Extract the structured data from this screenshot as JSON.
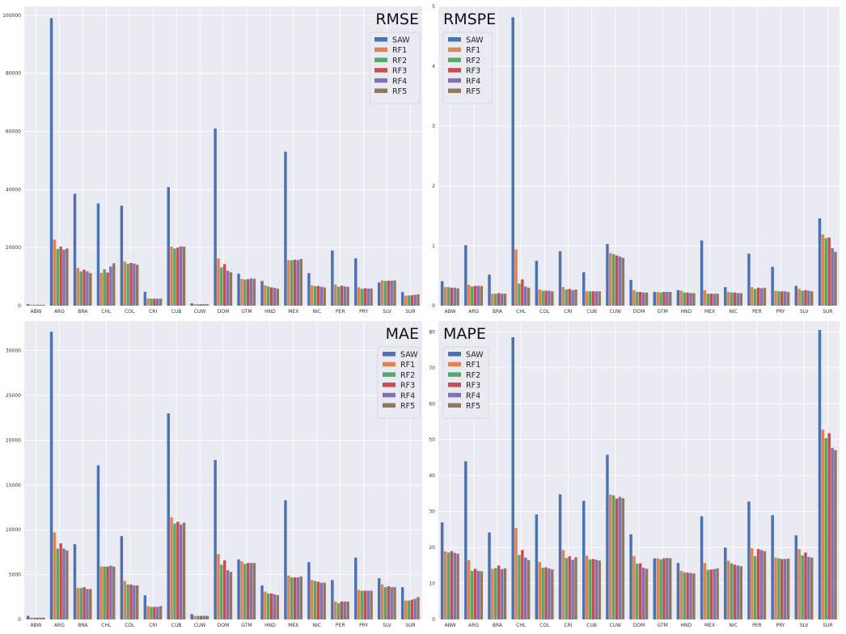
{
  "colors": {
    "SAW": "#4c72b0",
    "RF1": "#dd8452",
    "RF2": "#55a868",
    "RF3": "#c44e52",
    "RF4": "#8172b3",
    "RF5": "#937860",
    "panel_bg": "#eaeaf2",
    "grid": "#ffffff"
  },
  "chart_data": [
    {
      "type": "bar",
      "title": "RMSE",
      "legend": "top-right",
      "grid": true,
      "categories": [
        "ABW",
        "ARG",
        "BRA",
        "CHL",
        "COL",
        "CRI",
        "CUB",
        "CUW",
        "DOM",
        "GTM",
        "HND",
        "MEX",
        "NIC",
        "PER",
        "PRY",
        "SLV",
        "SUR"
      ],
      "ylim": [
        0,
        103000
      ],
      "yticks": [
        0,
        20000,
        40000,
        60000,
        80000,
        100000
      ],
      "series": [
        {
          "name": "SAW",
          "values": [
            500,
            99000,
            38500,
            35200,
            34400,
            4800,
            40800,
            800,
            61000,
            11000,
            8500,
            53000,
            11200,
            19000,
            16300,
            8000,
            4700
          ]
        },
        {
          "name": "RF1",
          "values": [
            300,
            22700,
            13000,
            11300,
            15200,
            2500,
            20300,
            500,
            16300,
            9200,
            7000,
            15700,
            7000,
            7300,
            6300,
            8700,
            3400
          ]
        },
        {
          "name": "RF2",
          "values": [
            300,
            19500,
            11800,
            12500,
            14400,
            2400,
            19700,
            500,
            13200,
            9000,
            6600,
            15600,
            6700,
            6500,
            5800,
            8500,
            3500
          ]
        },
        {
          "name": "RF3",
          "values": [
            300,
            20300,
            12400,
            11400,
            14700,
            2400,
            20000,
            500,
            14300,
            9100,
            6300,
            15800,
            6800,
            6900,
            6000,
            8600,
            3600
          ]
        },
        {
          "name": "RF4",
          "values": [
            300,
            19300,
            11800,
            13500,
            14500,
            2400,
            20400,
            500,
            12000,
            9400,
            6100,
            15700,
            6500,
            6600,
            5900,
            8600,
            3800
          ]
        },
        {
          "name": "RF5",
          "values": [
            300,
            19700,
            11200,
            14600,
            14100,
            2400,
            20300,
            500,
            11500,
            9300,
            5900,
            16100,
            6300,
            6500,
            5900,
            8700,
            3900
          ]
        }
      ]
    },
    {
      "type": "bar",
      "title": "RMSPE",
      "legend": "top-left",
      "grid": true,
      "categories": [
        "ABW",
        "ARG",
        "BRA",
        "CHL",
        "COL",
        "CRI",
        "CUB",
        "CUW",
        "DOM",
        "GTM",
        "HND",
        "MEX",
        "NIC",
        "PER",
        "PRY",
        "SLV",
        "SUR"
      ],
      "ylim": [
        0,
        5.0
      ],
      "yticks": [
        0,
        1,
        2,
        3,
        4,
        5
      ],
      "series": [
        {
          "name": "SAW",
          "values": [
            0.41,
            1.01,
            0.52,
            4.82,
            0.75,
            0.91,
            0.56,
            1.03,
            0.43,
            0.23,
            0.26,
            1.09,
            0.31,
            0.87,
            0.65,
            0.33,
            1.46
          ]
        },
        {
          "name": "RF1",
          "values": [
            0.31,
            0.35,
            0.2,
            0.94,
            0.27,
            0.31,
            0.24,
            0.88,
            0.26,
            0.23,
            0.25,
            0.26,
            0.23,
            0.31,
            0.25,
            0.28,
            1.19
          ]
        },
        {
          "name": "RF2",
          "values": [
            0.31,
            0.32,
            0.2,
            0.37,
            0.25,
            0.27,
            0.24,
            0.86,
            0.23,
            0.22,
            0.22,
            0.2,
            0.22,
            0.28,
            0.24,
            0.25,
            1.13
          ]
        },
        {
          "name": "RF3",
          "values": [
            0.3,
            0.33,
            0.21,
            0.44,
            0.25,
            0.28,
            0.24,
            0.84,
            0.23,
            0.23,
            0.22,
            0.2,
            0.22,
            0.3,
            0.24,
            0.26,
            1.14
          ]
        },
        {
          "name": "RF4",
          "values": [
            0.3,
            0.33,
            0.2,
            0.32,
            0.25,
            0.26,
            0.24,
            0.82,
            0.22,
            0.23,
            0.21,
            0.2,
            0.21,
            0.29,
            0.24,
            0.25,
            0.96
          ]
        },
        {
          "name": "RF5",
          "values": [
            0.29,
            0.33,
            0.2,
            0.3,
            0.24,
            0.27,
            0.24,
            0.8,
            0.22,
            0.23,
            0.21,
            0.2,
            0.21,
            0.3,
            0.23,
            0.24,
            0.9
          ]
        }
      ]
    },
    {
      "type": "bar",
      "title": "MAE",
      "legend": "top-right",
      "grid": true,
      "categories": [
        "ABW",
        "ARG",
        "BRA",
        "CHL",
        "COL",
        "CRI",
        "CUB",
        "CUW",
        "DOM",
        "GTM",
        "HND",
        "MEX",
        "NIC",
        "PER",
        "PRY",
        "SLV",
        "SUR"
      ],
      "ylim": [
        0,
        33300
      ],
      "yticks": [
        0,
        5000,
        10000,
        15000,
        20000,
        25000,
        30000
      ],
      "series": [
        {
          "name": "SAW",
          "values": [
            400,
            32100,
            8400,
            17200,
            9300,
            2700,
            23000,
            600,
            17800,
            6700,
            3800,
            13300,
            6400,
            4400,
            6900,
            4600,
            3600
          ]
        },
        {
          "name": "RF1",
          "values": [
            200,
            9700,
            3500,
            5900,
            4300,
            1500,
            11400,
            400,
            7300,
            6500,
            3100,
            4900,
            4400,
            2000,
            3300,
            3900,
            2100
          ]
        },
        {
          "name": "RF2",
          "values": [
            200,
            7900,
            3500,
            5900,
            3900,
            1400,
            10700,
            400,
            6100,
            6200,
            2900,
            4700,
            4300,
            1800,
            3200,
            3600,
            2100
          ]
        },
        {
          "name": "RF3",
          "values": [
            200,
            8500,
            3600,
            5900,
            3900,
            1400,
            10900,
            400,
            6600,
            6300,
            2900,
            4700,
            4200,
            2000,
            3200,
            3700,
            2200
          ]
        },
        {
          "name": "RF4",
          "values": [
            200,
            7900,
            3400,
            6000,
            3800,
            1400,
            10600,
            400,
            5500,
            6300,
            2800,
            4700,
            4100,
            2000,
            3200,
            3600,
            2300
          ]
        },
        {
          "name": "RF5",
          "values": [
            200,
            7700,
            3400,
            5900,
            3800,
            1500,
            10800,
            400,
            5300,
            6300,
            2700,
            4800,
            4100,
            2000,
            3200,
            3600,
            2500
          ]
        }
      ]
    },
    {
      "type": "bar",
      "title": "MAPE",
      "legend": "top-left",
      "grid": true,
      "categories": [
        "ABW",
        "ARG",
        "BRA",
        "CHL",
        "COL",
        "CRI",
        "CUB",
        "CUW",
        "DOM",
        "GTM",
        "HND",
        "MEX",
        "NIC",
        "PER",
        "PRY",
        "SLV",
        "SUR"
      ],
      "ylim": [
        0,
        83
      ],
      "yticks": [
        0,
        10,
        20,
        30,
        40,
        50,
        60,
        70,
        80
      ],
      "series": [
        {
          "name": "SAW",
          "values": [
            27.0,
            44.0,
            24.2,
            78.5,
            29.2,
            34.8,
            33.0,
            45.8,
            23.7,
            17.0,
            15.7,
            28.7,
            20.0,
            32.8,
            29.0,
            23.4,
            80.5
          ]
        },
        {
          "name": "RF1",
          "values": [
            18.9,
            16.5,
            14.1,
            25.4,
            16.0,
            19.3,
            17.7,
            34.7,
            17.6,
            17.0,
            13.5,
            15.7,
            16.3,
            19.8,
            17.2,
            19.6,
            52.8
          ]
        },
        {
          "name": "RF2",
          "values": [
            18.6,
            13.5,
            14.3,
            17.9,
            14.4,
            17.1,
            16.7,
            34.5,
            15.5,
            16.7,
            13.1,
            13.8,
            15.6,
            17.6,
            17.0,
            17.8,
            50.4
          ]
        },
        {
          "name": "RF3",
          "values": [
            19.0,
            14.1,
            15.0,
            19.3,
            14.5,
            17.6,
            16.8,
            33.6,
            15.6,
            17.0,
            13.0,
            13.9,
            15.2,
            19.6,
            16.8,
            18.6,
            51.8
          ]
        },
        {
          "name": "RF4",
          "values": [
            18.5,
            13.5,
            14.0,
            17.2,
            14.2,
            16.6,
            16.6,
            34.1,
            14.4,
            17.1,
            12.9,
            14.0,
            15.0,
            19.3,
            16.8,
            17.4,
            47.7
          ]
        },
        {
          "name": "RF5",
          "values": [
            18.3,
            13.4,
            14.2,
            16.5,
            13.9,
            17.3,
            16.4,
            33.7,
            14.1,
            17.0,
            12.8,
            14.2,
            14.8,
            19.0,
            16.9,
            17.2,
            47.1
          ]
        }
      ]
    }
  ]
}
